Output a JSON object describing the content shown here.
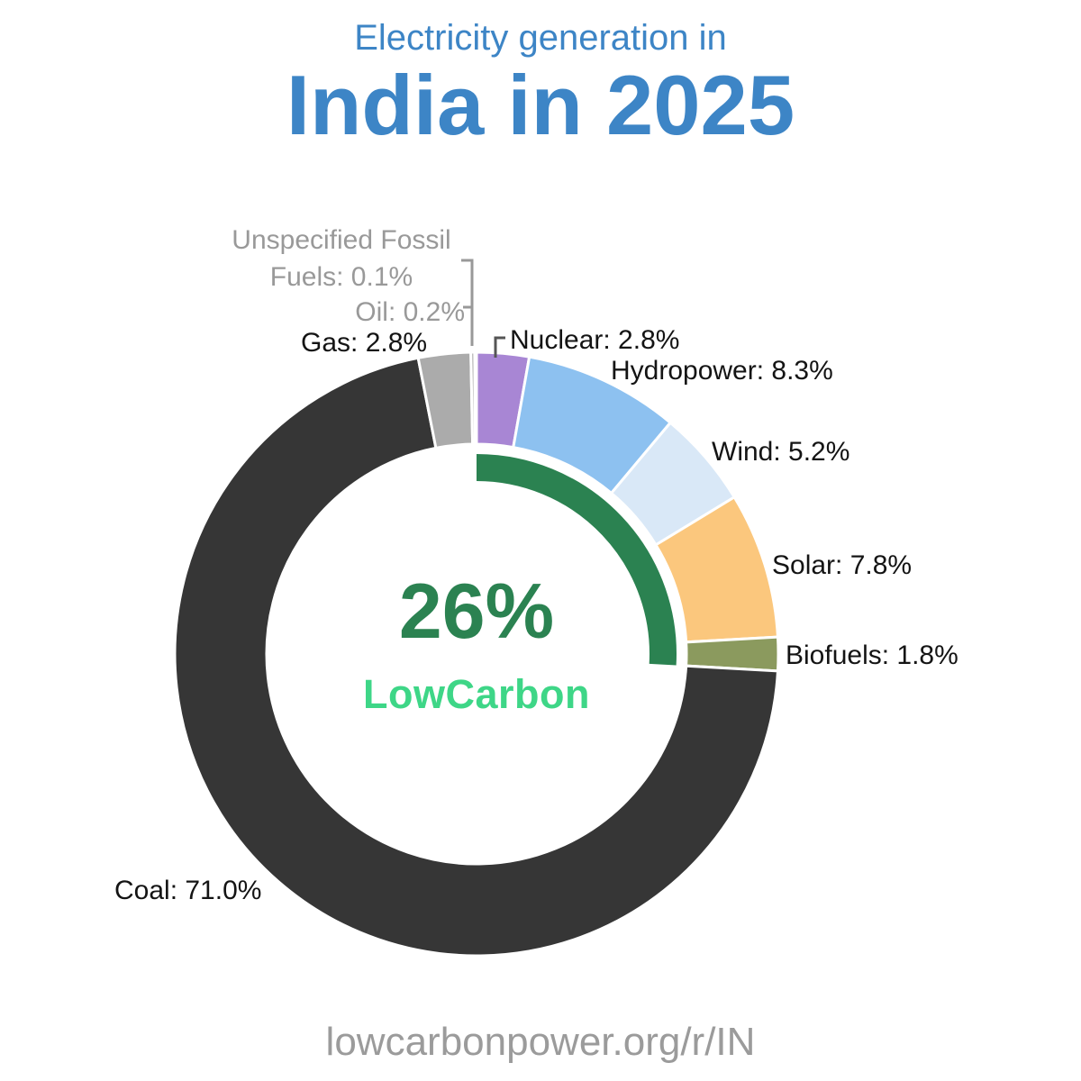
{
  "header": {
    "subtitle": "Electricity generation in",
    "title": "India in 2025"
  },
  "center": {
    "percent": "26%",
    "brand": "LowCarbon"
  },
  "footer": {
    "url": "lowcarbonpower.org/r/IN"
  },
  "colors": {
    "title_blue": "#3d85c6",
    "low_carbon_arc": "#2b8251",
    "brand_green": "#3ed687",
    "muted_label": "#999999",
    "leader_line": "#999999"
  },
  "chart_data": {
    "type": "pie",
    "donut": true,
    "title": "Electricity generation in India in 2025",
    "units": "percent",
    "start_angle_deg": 0,
    "direction": "clockwise",
    "center_annotation": {
      "value": "26%",
      "label": "LowCarbon"
    },
    "low_carbon_share_percent": 26,
    "segments": [
      {
        "name": "Nuclear",
        "value": 2.8,
        "color": "#a886d4",
        "low_carbon": true,
        "label": "Nuclear: 2.8%"
      },
      {
        "name": "Hydropower",
        "value": 8.3,
        "color": "#8dc1f0",
        "low_carbon": true,
        "label": "Hydropower: 8.3%"
      },
      {
        "name": "Wind",
        "value": 5.2,
        "color": "#d9e8f7",
        "low_carbon": true,
        "label": "Wind: 5.2%"
      },
      {
        "name": "Solar",
        "value": 7.8,
        "color": "#fbc77d",
        "low_carbon": true,
        "label": "Solar: 7.8%"
      },
      {
        "name": "Biofuels",
        "value": 1.8,
        "color": "#8b9a5e",
        "low_carbon": true,
        "label": "Biofuels: 1.8%"
      },
      {
        "name": "Coal",
        "value": 71.0,
        "color": "#363636",
        "low_carbon": false,
        "label": "Coal: 71.0%"
      },
      {
        "name": "Gas",
        "value": 2.8,
        "color": "#ababab",
        "low_carbon": false,
        "label": "Gas: 2.8%"
      },
      {
        "name": "Oil",
        "value": 0.2,
        "color": "#ababab",
        "low_carbon": false,
        "label": "Oil: 0.2%"
      },
      {
        "name": "Unspecified Fossil Fuels",
        "value": 0.1,
        "color": "#ababab",
        "low_carbon": false,
        "label": "Unspecified Fossil Fuels: 0.1%"
      }
    ]
  }
}
